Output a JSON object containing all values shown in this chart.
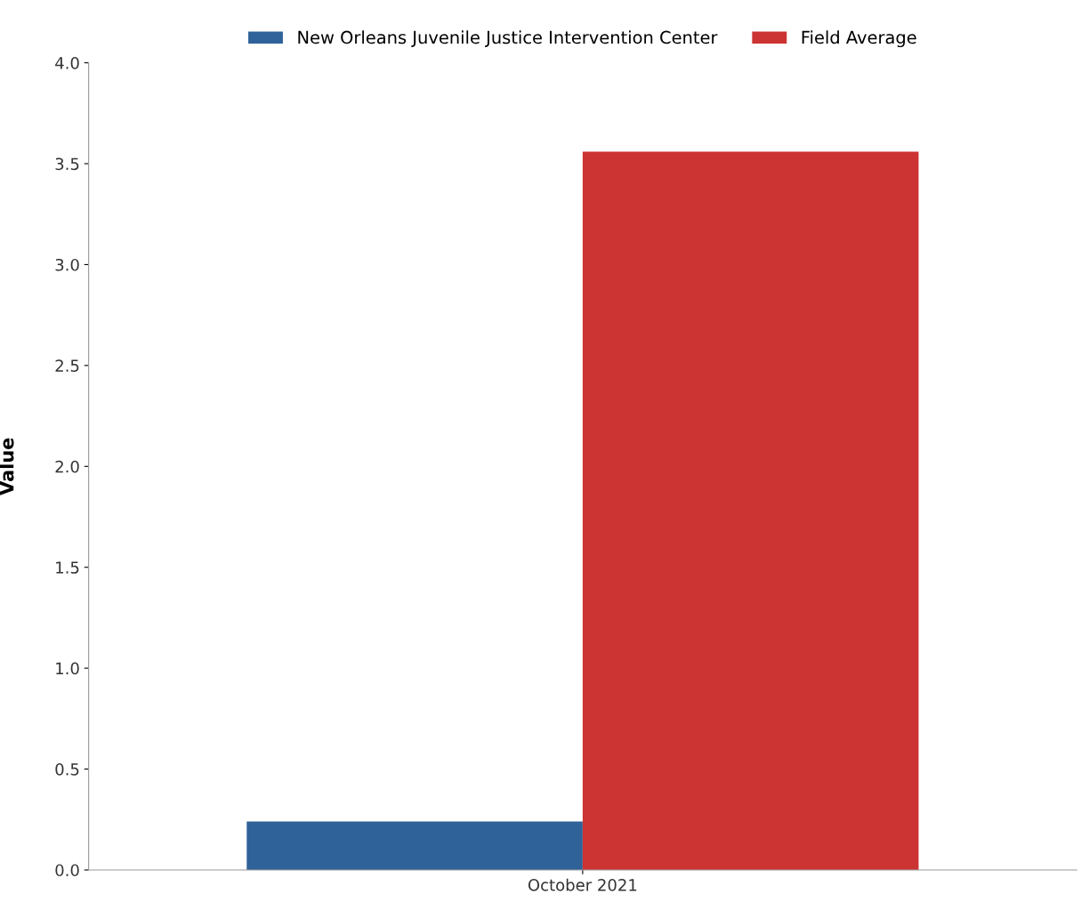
{
  "chart_data": {
    "type": "bar",
    "ylabel": "Value",
    "categories": [
      "October 2021"
    ],
    "series": [
      {
        "name": "New Orleans Juvenile Justice Intervention Center",
        "color": "#2f6298",
        "values": [
          0.24
        ]
      },
      {
        "name": "Field Average",
        "color": "#cc3333",
        "values": [
          3.56
        ]
      }
    ],
    "ylim": [
      0,
      4.0
    ],
    "yticks": [
      {
        "value": 0,
        "label": "0.0"
      },
      0.5,
      {
        "value": 1,
        "label": "1.0"
      },
      1.5,
      {
        "value": 2,
        "label": "2.0"
      },
      2.5,
      {
        "value": 3,
        "label": "3.0"
      },
      3.5,
      {
        "value": 4,
        "label": "4.0"
      }
    ],
    "grid": false,
    "legend": "top"
  }
}
